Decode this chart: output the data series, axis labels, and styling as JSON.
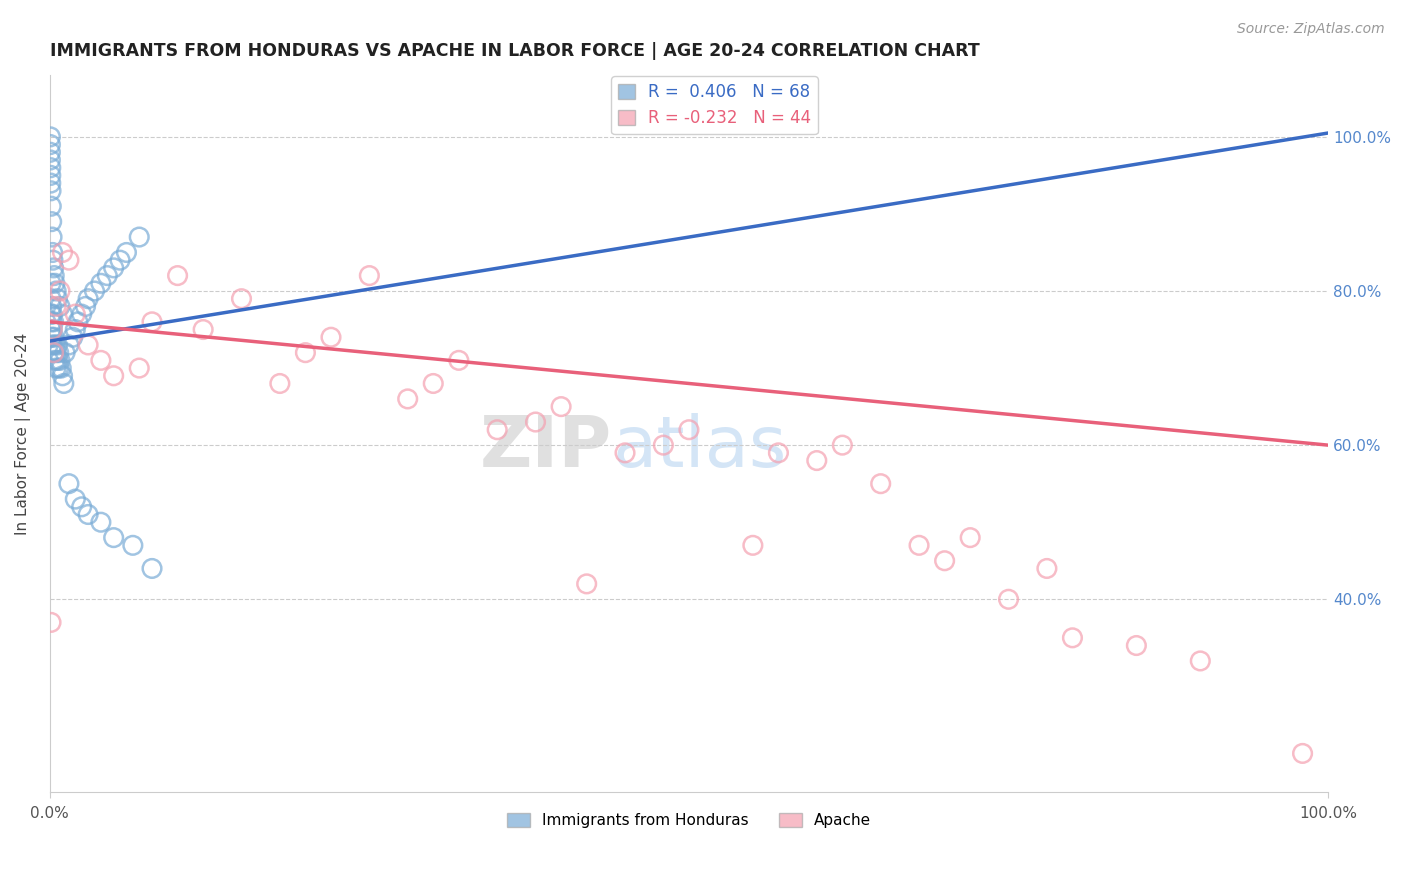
{
  "title": "IMMIGRANTS FROM HONDURAS VS APACHE IN LABOR FORCE | AGE 20-24 CORRELATION CHART",
  "source": "Source: ZipAtlas.com",
  "ylabel": "In Labor Force | Age 20-24",
  "legend1_label": "R =  0.406   N = 68",
  "legend2_label": "R = -0.232   N = 44",
  "legend_bottom": [
    "Immigrants from Honduras",
    "Apache"
  ],
  "blue_color": "#7aacd6",
  "pink_color": "#f4a0b0",
  "blue_line_color": "#3a6bc4",
  "pink_line_color": "#e8607a",
  "watermark_zip": "ZIP",
  "watermark_atlas": "atlas",
  "xmin": 0.0,
  "xmax": 100.0,
  "ymin": 15.0,
  "ymax": 108.0,
  "blue_points_x": [
    0.1,
    0.1,
    0.1,
    0.1,
    0.15,
    0.15,
    0.15,
    0.2,
    0.2,
    0.2,
    0.3,
    0.3,
    0.3,
    0.4,
    0.4,
    0.5,
    0.5,
    0.6,
    0.6,
    0.7,
    0.7,
    0.8,
    0.9,
    1.0,
    1.1,
    1.2,
    1.5,
    1.8,
    2.0,
    2.2,
    2.5,
    2.8,
    3.0,
    3.5,
    4.0,
    4.5,
    5.0,
    5.5,
    6.0,
    7.0,
    0.05,
    0.05,
    0.05,
    0.05,
    0.08,
    0.08,
    0.08,
    0.1,
    0.12,
    0.15,
    0.18,
    0.22,
    0.25,
    0.3,
    0.35,
    0.4,
    0.5,
    0.6,
    0.8,
    1.0,
    1.5,
    2.0,
    2.5,
    3.0,
    4.0,
    5.0,
    6.5,
    8.0
  ],
  "blue_points_y": [
    75.0,
    77.0,
    79.0,
    81.0,
    74.0,
    76.0,
    78.0,
    73.0,
    75.0,
    77.0,
    72.0,
    74.0,
    76.0,
    71.0,
    73.0,
    70.0,
    72.0,
    71.0,
    73.0,
    70.0,
    72.0,
    71.0,
    70.0,
    69.0,
    68.0,
    72.0,
    73.0,
    74.0,
    75.0,
    76.0,
    77.0,
    78.0,
    79.0,
    80.0,
    81.0,
    82.0,
    83.0,
    84.0,
    85.0,
    87.0,
    100.0,
    99.0,
    98.0,
    97.0,
    96.0,
    95.0,
    94.0,
    93.0,
    91.0,
    89.0,
    87.0,
    85.0,
    84.0,
    83.0,
    82.0,
    81.0,
    80.0,
    79.0,
    78.0,
    77.0,
    55.0,
    53.0,
    52.0,
    51.0,
    50.0,
    48.0,
    47.0,
    44.0
  ],
  "pink_points_x": [
    0.1,
    0.2,
    0.3,
    0.5,
    0.8,
    1.0,
    1.5,
    2.0,
    3.0,
    4.0,
    5.0,
    7.0,
    8.0,
    10.0,
    12.0,
    15.0,
    18.0,
    20.0,
    22.0,
    25.0,
    28.0,
    30.0,
    32.0,
    35.0,
    38.0,
    40.0,
    42.0,
    45.0,
    48.0,
    50.0,
    55.0,
    57.0,
    60.0,
    62.0,
    65.0,
    68.0,
    70.0,
    72.0,
    75.0,
    78.0,
    80.0,
    85.0,
    90.0,
    98.0
  ],
  "pink_points_y": [
    37.0,
    75.0,
    72.0,
    78.0,
    80.0,
    85.0,
    84.0,
    77.0,
    73.0,
    71.0,
    69.0,
    70.0,
    76.0,
    82.0,
    75.0,
    79.0,
    68.0,
    72.0,
    74.0,
    82.0,
    66.0,
    68.0,
    71.0,
    62.0,
    63.0,
    65.0,
    42.0,
    59.0,
    60.0,
    62.0,
    47.0,
    59.0,
    58.0,
    60.0,
    55.0,
    47.0,
    45.0,
    48.0,
    40.0,
    44.0,
    35.0,
    34.0,
    32.0,
    20.0
  ],
  "blue_line_x0": 0.0,
  "blue_line_y0": 73.5,
  "blue_line_x1": 100.0,
  "blue_line_y1": 100.5,
  "pink_line_x0": 0.0,
  "pink_line_y0": 76.0,
  "pink_line_x1": 100.0,
  "pink_line_y1": 60.0
}
